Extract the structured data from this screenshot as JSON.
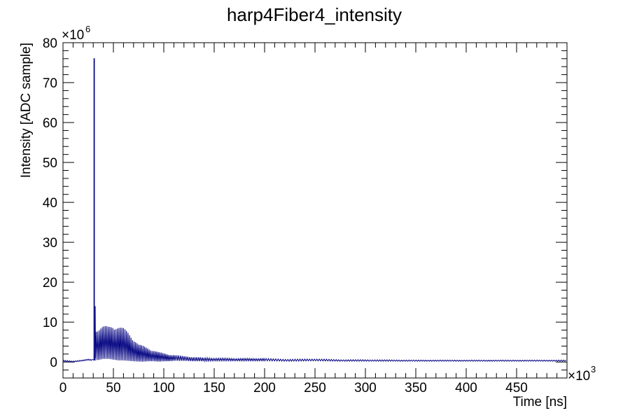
{
  "chart_data": {
    "type": "line",
    "title": "harp4Fiber4_intensity",
    "xlabel": "Time [ns]",
    "ylabel": "Intensity [ADC sample]",
    "x_multiplier": {
      "base": "×10",
      "exp": "3"
    },
    "y_multiplier": {
      "base": "×10",
      "exp": "6"
    },
    "xlim": [
      0,
      500
    ],
    "ylim": [
      -4,
      80
    ],
    "x_ticks": [
      0,
      50,
      100,
      150,
      200,
      250,
      300,
      350,
      400,
      450
    ],
    "x_tick_labels": [
      "0",
      "50",
      "100",
      "150",
      "200",
      "250",
      "300",
      "350",
      "400",
      "450"
    ],
    "y_ticks": [
      0,
      10,
      20,
      30,
      40,
      50,
      60,
      70,
      80
    ],
    "y_tick_labels": [
      "0",
      "10",
      "20",
      "30",
      "40",
      "50",
      "60",
      "70",
      "80"
    ],
    "grid": false,
    "legend": "none",
    "line_color": "#000080",
    "series": [
      {
        "peak": {
          "x": 31,
          "y": 76
        },
        "secondary_peak": {
          "x": 32,
          "y": 14
        },
        "baseline_before": {
          "x": [
            0,
            10,
            20,
            25,
            29
          ],
          "y": [
            0.3,
            0.1,
            0.4,
            0.6,
            0.5
          ]
        },
        "oscillation_envelope": {
          "x": [
            32,
            35,
            40,
            45,
            50,
            55,
            60,
            65,
            70,
            75,
            80,
            85,
            90,
            95,
            100,
            105,
            110,
            120,
            130,
            140,
            150,
            175,
            200,
            225,
            250,
            275,
            300,
            350,
            400,
            450,
            500
          ],
          "max": [
            9,
            8.5,
            9,
            9,
            9.5,
            9,
            8.5,
            7.5,
            6,
            4.5,
            4,
            3.5,
            3,
            2.5,
            2.2,
            2,
            1.8,
            1.5,
            1.3,
            1.1,
            1.0,
            0.9,
            0.9,
            0.7,
            0.8,
            0.6,
            0.6,
            0.5,
            0.5,
            0.5,
            0.5
          ],
          "min": [
            0.5,
            0.5,
            0.8,
            0.8,
            0.6,
            0.4,
            0.4,
            0.3,
            0.2,
            0.1,
            0.1,
            0.2,
            0.2,
            0.1,
            0.2,
            0.2,
            0.3,
            0.3,
            0.2,
            0.2,
            0.3,
            0.3,
            0.3,
            0.2,
            0.3,
            0.2,
            0.2,
            0.2,
            0.2,
            0.2,
            0.2
          ]
        }
      }
    ]
  }
}
